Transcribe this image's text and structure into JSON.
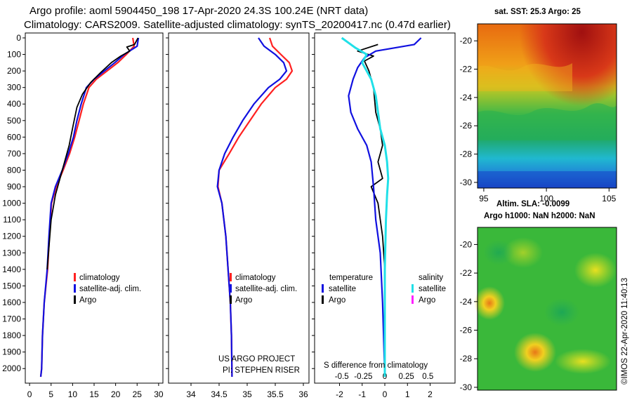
{
  "header": {
    "title_line1": "Argo profile: aoml 5904450_198 17-Apr-2020 24.3S 100.24E (NRT data)",
    "title_line2": "Climatology: CARS2009. Satellite-adjusted climatology: synTS_20200417.nc (0.47d earlier)"
  },
  "colors": {
    "climatology": "#ff2020",
    "satellite_adj": "#1010e0",
    "argo": "#000000",
    "salinity_satellite": "#20e0e8",
    "salinity_argo": "#ff20ff"
  },
  "chart_data": [
    {
      "type": "line",
      "name": "temperature-profile",
      "xlabel": "",
      "ylabel": "",
      "xlim": [
        -1,
        31
      ],
      "ylim": [
        2050,
        0
      ],
      "xticks": [
        0,
        5,
        10,
        15,
        20,
        25,
        30
      ],
      "yticks": [
        0,
        100,
        200,
        300,
        400,
        500,
        600,
        700,
        800,
        900,
        1000,
        1100,
        1200,
        1300,
        1400,
        1500,
        1600,
        1700,
        1800,
        1900,
        2000
      ],
      "legend": [
        "climatology",
        "satellite-adj. clim.",
        "Argo"
      ],
      "series": [
        {
          "name": "climatology",
          "x": [
            24.0,
            24.3,
            22.5,
            20.5,
            18.0,
            15.5,
            13.8,
            12.5,
            11.5,
            10.5,
            9.3,
            7.8,
            6.2,
            5.1,
            4.6,
            4.2,
            3.4,
            3.0,
            2.8,
            2.6
          ],
          "y": [
            0,
            50,
            100,
            150,
            200,
            250,
            300,
            400,
            500,
            600,
            700,
            800,
            900,
            1000,
            1200,
            1400,
            1600,
            1800,
            2000,
            2050
          ]
        },
        {
          "name": "satellite-adj. clim.",
          "x": [
            25.3,
            25.0,
            22.0,
            19.8,
            17.4,
            15.0,
            13.2,
            12.0,
            11.0,
            10.2,
            9.0,
            7.6,
            6.0,
            5.0,
            4.5,
            4.1,
            3.4,
            3.0,
            2.8,
            2.6
          ],
          "y": [
            0,
            50,
            100,
            150,
            200,
            250,
            300,
            400,
            500,
            600,
            700,
            800,
            900,
            1000,
            1200,
            1400,
            1600,
            1800,
            2000,
            2050
          ]
        },
        {
          "name": "Argo",
          "x": [
            25.2,
            24.4,
            22.6,
            23.3,
            21.2,
            19.0,
            16.5,
            14.2,
            12.3,
            11.0,
            10.2,
            9.2,
            7.6,
            6.0,
            5.0,
            4.1
          ],
          "y": [
            0,
            40,
            55,
            80,
            110,
            150,
            210,
            270,
            340,
            420,
            520,
            650,
            800,
            950,
            1100,
            1400
          ]
        }
      ]
    },
    {
      "type": "line",
      "name": "salinity-profile",
      "xlim": [
        33.6,
        36.1
      ],
      "ylim": [
        2050,
        0
      ],
      "xticks": [
        34,
        34.5,
        35,
        35.5,
        36
      ],
      "xticklabels": [
        "34",
        "34.5",
        "35",
        "35.5",
        "36"
      ],
      "legend": [
        "climatology",
        "satellite-adj. clim.",
        "Argo"
      ],
      "annotation": [
        "US ARGO PROJECT",
        "PI: STEPHEN RISER"
      ],
      "series": [
        {
          "name": "climatology",
          "x": [
            35.4,
            35.45,
            35.6,
            35.75,
            35.8,
            35.7,
            35.5,
            35.25,
            35.05,
            34.85,
            34.68,
            34.5,
            34.48,
            34.55,
            34.62,
            34.66,
            34.7,
            34.72,
            34.73
          ],
          "y": [
            0,
            50,
            100,
            150,
            200,
            250,
            300,
            400,
            500,
            600,
            700,
            800,
            900,
            1000,
            1200,
            1400,
            1600,
            1800,
            2050
          ]
        },
        {
          "name": "satellite-adj. clim.",
          "x": [
            35.2,
            35.3,
            35.5,
            35.65,
            35.7,
            35.58,
            35.38,
            35.12,
            34.92,
            34.75,
            34.6,
            34.5,
            34.47,
            34.55,
            34.62,
            34.66,
            34.7,
            34.72,
            34.73
          ],
          "y": [
            0,
            50,
            100,
            150,
            200,
            250,
            300,
            400,
            500,
            600,
            700,
            800,
            900,
            1000,
            1200,
            1400,
            1600,
            1800,
            2050
          ]
        }
      ]
    },
    {
      "type": "line",
      "name": "difference-profile",
      "xlabel": "S difference from climatology",
      "xlim": [
        -3.1,
        3.1
      ],
      "ylim": [
        2050,
        0
      ],
      "xticks": [
        -2,
        -1,
        0,
        1,
        2
      ],
      "s_ticks": [
        -0.5,
        -0.25,
        0,
        0.25,
        0.5
      ],
      "s_ticklabels": [
        "-0.5",
        "-0.25",
        "0",
        "0.25",
        "0.5"
      ],
      "legend_temperature": {
        "title": "temperature",
        "items": [
          "satellite",
          "Argo"
        ]
      },
      "legend_salinity": {
        "title": "salinity",
        "items": [
          "satellite",
          "Argo"
        ]
      },
      "series": [
        {
          "name": "temperature satellite",
          "x": [
            1.6,
            1.3,
            -0.4,
            -0.9,
            -1.2,
            -1.4,
            -1.6,
            -1.5,
            -1.2,
            -0.8,
            -0.6,
            -0.5,
            -0.4,
            -0.2,
            -0.1,
            0
          ],
          "y": [
            0,
            40,
            80,
            120,
            180,
            250,
            350,
            450,
            550,
            650,
            750,
            900,
            1100,
            1300,
            1600,
            2050
          ]
        },
        {
          "name": "temperature Argo",
          "x": [
            -0.3,
            -1.2,
            -0.5,
            -0.9,
            -0.7,
            -0.5,
            -0.4,
            -0.2,
            -0.1,
            -0.3,
            -0.1,
            -0.6,
            -0.3,
            -0.1,
            0
          ],
          "y": [
            40,
            80,
            110,
            140,
            200,
            300,
            450,
            550,
            650,
            750,
            850,
            900,
            1000,
            1200,
            1400
          ]
        },
        {
          "name": "salinity satellite",
          "x": [
            -1.9,
            -1.6,
            -1.3,
            -0.8,
            -1.0,
            -0.6,
            -0.4,
            -0.3,
            -0.2,
            0,
            0.1,
            0.15,
            0.1,
            0.05,
            0,
            0
          ],
          "y": [
            0,
            30,
            60,
            100,
            150,
            250,
            350,
            450,
            550,
            650,
            750,
            850,
            950,
            1100,
            1400,
            2050
          ]
        }
      ]
    },
    {
      "type": "heatmap",
      "name": "sst-map",
      "title": "sat. SST: 25.3 Argo: 25",
      "xticks": [
        95,
        100,
        105
      ],
      "yticks": [
        -20,
        -22,
        -24,
        -26,
        -28,
        -30
      ],
      "yticklabels": [
        "-20",
        "-22",
        "-24",
        "-26",
        "-28",
        "-30"
      ]
    },
    {
      "type": "heatmap",
      "name": "sla-map",
      "title_line1": "Altim. SLA: -0.0099",
      "title_line2": "Argo h1000: NaN h2000: NaN",
      "yticks": [
        -20,
        -22,
        -24,
        -26,
        -28,
        -30
      ],
      "yticklabels": [
        "-20",
        "-22",
        "-24",
        "-26",
        "-28",
        "-30"
      ],
      "credit": "©IMOS 22-Apr-2020 11:40:13"
    }
  ]
}
